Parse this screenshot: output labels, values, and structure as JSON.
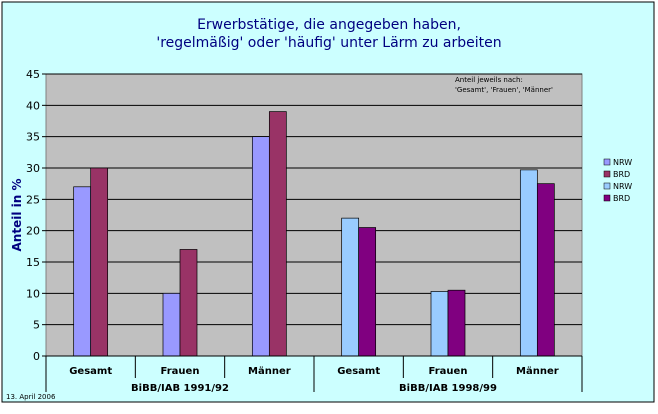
{
  "chart_data": {
    "type": "bar",
    "title_line1": "Erwerbstätige, die angegeben haben,",
    "title_line2": "'regelmäßig' oder 'häufig' unter Lärm zu arbeiten",
    "ylabel": "Anteil in %",
    "ylim": [
      0,
      45
    ],
    "ytick_step": 5,
    "grid": true,
    "legend_position": "right",
    "note_line1": "Anteil jeweils nach:",
    "note_line2": "'Gesamt', 'Frauen', 'Männer'",
    "footnote": "13. April 2006",
    "groups": [
      {
        "label": "BiBB/IAB 1991/92",
        "categories": [
          "Gesamt",
          "Frauen",
          "Männer"
        ],
        "series": [
          {
            "name": "NRW",
            "color": "#9999FF",
            "values": [
              27,
              10,
              35
            ]
          },
          {
            "name": "BRD",
            "color": "#993366",
            "values": [
              30,
              17,
              39
            ]
          }
        ]
      },
      {
        "label": "BiBB/IAB 1998/99",
        "categories": [
          "Gesamt",
          "Frauen",
          "Männer"
        ],
        "series": [
          {
            "name": "NRW",
            "color": "#99CCFF",
            "values": [
              22,
              10.3,
              29.7
            ]
          },
          {
            "name": "BRD",
            "color": "#800080",
            "values": [
              20.5,
              10.5,
              27.5
            ]
          }
        ]
      }
    ]
  }
}
